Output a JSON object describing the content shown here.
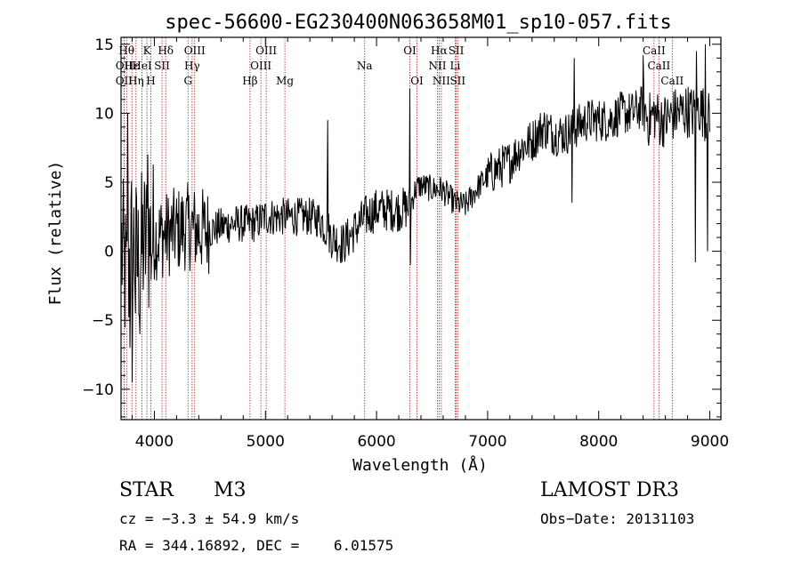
{
  "chart_data": {
    "type": "line",
    "title": "spec-56600-EG230400N063658M01_sp10-057.fits",
    "xlabel": "Wavelength (Å)",
    "ylabel": "Flux (relative)",
    "xlim": [
      3700,
      9100
    ],
    "ylim": [
      -12.2,
      15.5
    ],
    "xticks": [
      4000,
      5000,
      6000,
      7000,
      8000,
      9000
    ],
    "yticks": [
      -10,
      -5,
      0,
      5,
      10,
      15
    ],
    "xtick_labels": [
      "4000",
      "5000",
      "6000",
      "7000",
      "8000",
      "9000"
    ],
    "ytick_labels": [
      "−10",
      "−5",
      "0",
      "5",
      "10",
      "15"
    ],
    "spectrum_anchors": {
      "x": [
        3700,
        3750,
        3800,
        3850,
        3900,
        3950,
        4000,
        4100,
        4200,
        4300,
        4400,
        4500,
        4600,
        4700,
        4800,
        4900,
        5000,
        5100,
        5200,
        5300,
        5400,
        5500,
        5600,
        5700,
        5800,
        5900,
        6000,
        6100,
        6200,
        6300,
        6350,
        6400,
        6500,
        6580,
        6650,
        6700,
        6800,
        6900,
        7000,
        7100,
        7200,
        7300,
        7400,
        7500,
        7600,
        7700,
        7800,
        7900,
        8000,
        8100,
        8200,
        8300,
        8400,
        8450,
        8500,
        8550,
        8600,
        8700,
        8800,
        8850,
        8900,
        8950,
        9000
      ],
      "y": [
        0.5,
        -2.5,
        1.0,
        -1.0,
        0.5,
        0.8,
        1.0,
        1.2,
        1.5,
        1.8,
        1.5,
        1.5,
        1.8,
        2.0,
        2.0,
        2.0,
        2.5,
        2.5,
        2.5,
        2.5,
        2.5,
        2.3,
        1.0,
        0.5,
        1.5,
        2.5,
        3.0,
        3.0,
        3.0,
        3.2,
        4.5,
        4.8,
        4.5,
        4.5,
        4.0,
        3.5,
        3.3,
        4.5,
        5.5,
        6.0,
        6.5,
        7.5,
        8.0,
        9.0,
        8.5,
        8.5,
        9.0,
        9.5,
        9.5,
        9.5,
        10.0,
        10.0,
        10.5,
        9.5,
        10.0,
        9.5,
        9.5,
        10.0,
        10.2,
        10.0,
        10.5,
        10.0,
        9.5
      ]
    },
    "spike_points": [
      {
        "x": 3760,
        "y": 10.0
      },
      {
        "x": 3780,
        "y": -7.0
      },
      {
        "x": 3800,
        "y": -9.5
      },
      {
        "x": 3830,
        "y": -4.5
      },
      {
        "x": 3870,
        "y": -6.0
      },
      {
        "x": 3940,
        "y": 7.0
      },
      {
        "x": 5560,
        "y": 9.5
      },
      {
        "x": 6300,
        "y": 11.8
      },
      {
        "x": 6305,
        "y": -1.0
      },
      {
        "x": 7760,
        "y": 3.5
      },
      {
        "x": 7780,
        "y": 14.0
      },
      {
        "x": 8400,
        "y": 14.2
      },
      {
        "x": 8870,
        "y": -0.8
      },
      {
        "x": 8880,
        "y": 14.5
      },
      {
        "x": 8960,
        "y": 15.0
      },
      {
        "x": 8980,
        "y": 0.0
      }
    ],
    "spectral_lines": [
      {
        "x": 3750,
        "row": 0,
        "label": "Hθ"
      },
      {
        "x": 3727,
        "row": 1,
        "label": "OII"
      },
      {
        "x": 3798,
        "row": 1,
        "label": "Hε"
      },
      {
        "x": 3727,
        "row": 2,
        "label": "OII"
      },
      {
        "x": 3835,
        "row": 2,
        "label": "Hη"
      },
      {
        "x": 3889,
        "row": 1,
        "label": "HeI"
      },
      {
        "x": 3933,
        "row": 0,
        "label": "K"
      },
      {
        "x": 3968,
        "row": 2,
        "label": "H"
      },
      {
        "x": 4069,
        "row": 1,
        "label": "SII"
      },
      {
        "x": 4102,
        "row": 0,
        "label": "Hδ"
      },
      {
        "x": 4303,
        "row": 2,
        "label": "G"
      },
      {
        "x": 4340,
        "row": 1,
        "label": "Hγ"
      },
      {
        "x": 4363,
        "row": 0,
        "label": "OIII"
      },
      {
        "x": 4861,
        "row": 2,
        "label": "Hβ"
      },
      {
        "x": 4959,
        "row": 1,
        "label": "OIII"
      },
      {
        "x": 5007,
        "row": 0,
        "label": "OIII"
      },
      {
        "x": 5175,
        "row": 2,
        "label": "Mg"
      },
      {
        "x": 5893,
        "row": 1,
        "label": "Na"
      },
      {
        "x": 6300,
        "row": 0,
        "label": "OI"
      },
      {
        "x": 6364,
        "row": 2,
        "label": "OI"
      },
      {
        "x": 6548,
        "row": 1,
        "label": "NII"
      },
      {
        "x": 6563,
        "row": 0,
        "label": "Hα"
      },
      {
        "x": 6583,
        "row": 2,
        "label": "NII"
      },
      {
        "x": 6708,
        "row": 1,
        "label": "Li"
      },
      {
        "x": 6717,
        "row": 0,
        "label": "SII"
      },
      {
        "x": 6731,
        "row": 2,
        "label": "SII"
      },
      {
        "x": 8498,
        "row": 0,
        "label": "CaII"
      },
      {
        "x": 8542,
        "row": 1,
        "label": "CaII"
      },
      {
        "x": 8662,
        "row": 2,
        "label": "CaII"
      }
    ]
  },
  "info": {
    "class_label": "STAR",
    "subclass": "M3",
    "survey": "LAMOST DR3",
    "cz": "cz = −3.3 ± 54.9 km/s",
    "obs_date": "Obs−Date: 20131103",
    "coords": "RA = 344.16892, DEC =    6.01575"
  },
  "colors": {
    "line_marker": "#b02020",
    "spectrum": "#000000",
    "frame": "#000000"
  }
}
